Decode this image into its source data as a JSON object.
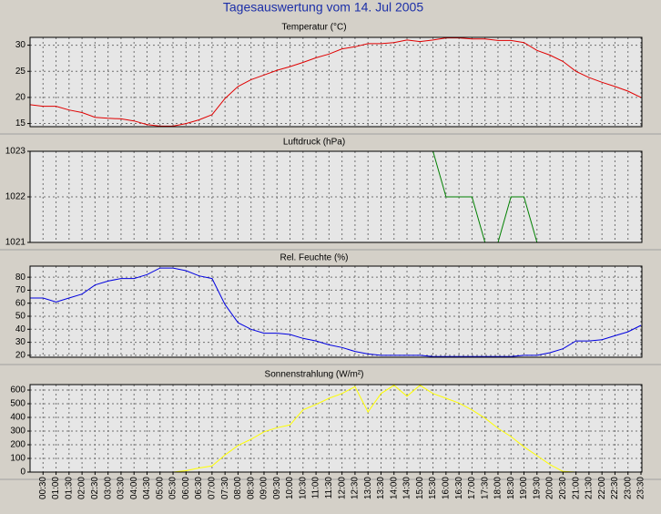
{
  "title": "Tagesauswertung vom 14. Jul 2005",
  "chart_data": [
    {
      "type": "line",
      "title": "Temperatur (°C)",
      "color": "#e00000",
      "grid": true,
      "ylim": [
        14.4,
        31.5
      ],
      "yticks": [
        15,
        20,
        25,
        30
      ],
      "values": [
        18.6,
        18.3,
        18.3,
        17.6,
        17.1,
        16.2,
        16.0,
        15.9,
        15.5,
        14.8,
        14.5,
        14.5,
        15.0,
        15.7,
        16.7,
        19.8,
        22.1,
        23.4,
        24.3,
        25.2,
        25.9,
        26.7,
        27.6,
        28.3,
        29.3,
        29.7,
        30.3,
        30.3,
        30.5,
        31.0,
        30.7,
        31.0,
        31.4,
        31.4,
        31.2,
        31.2,
        30.9,
        30.9,
        30.5,
        29.0,
        28.1,
        26.9,
        25.0,
        23.8,
        22.9,
        22.1,
        21.2,
        20.0
      ]
    },
    {
      "type": "line",
      "title": "Luftdruck (hPa)",
      "color": "#008000",
      "grid": true,
      "ylim": [
        1021,
        1023
      ],
      "yticks": [
        1021,
        1022,
        1023
      ],
      "values": [
        1023,
        1023,
        1023,
        1023,
        1023,
        1023,
        1023,
        1023,
        1023,
        1023,
        1023,
        1023,
        1023,
        1023,
        1023,
        1023,
        1023,
        1023,
        1023,
        1023,
        1023,
        1023,
        1023,
        1023,
        1023,
        1023,
        1023,
        1023,
        1023,
        1023,
        1023,
        1023,
        1022,
        1022,
        1022,
        1021,
        1021,
        1022,
        1022,
        1021,
        1021,
        1021,
        1021,
        1021,
        1021,
        1021,
        1021,
        1021
      ]
    },
    {
      "type": "line",
      "title": "Rel. Feuchte (%)",
      "color": "#0000e0",
      "grid": true,
      "ylim": [
        18.5,
        88.5
      ],
      "yticks": [
        20,
        30,
        40,
        50,
        60,
        70,
        80
      ],
      "values": [
        64,
        64,
        61,
        64,
        67,
        74,
        77,
        79,
        79,
        82,
        87,
        87,
        85,
        81,
        79,
        59,
        45,
        40,
        37,
        37,
        36,
        33,
        31,
        28,
        26,
        23,
        21,
        20,
        20,
        20,
        20,
        19,
        19,
        19,
        19,
        19,
        19,
        19,
        20,
        20,
        22,
        25,
        31,
        31,
        32,
        35,
        38,
        43
      ]
    },
    {
      "type": "line",
      "title": "Sonnenstrahlung (W/m²)",
      "color": "#ffff00",
      "grid": true,
      "ylim": [
        0,
        640
      ],
      "yticks": [
        0,
        100,
        200,
        300,
        400,
        500,
        600
      ],
      "categories": [
        null,
        "00:30",
        "01:00",
        "01:30",
        "02:00",
        "02:30",
        "03:00",
        "03:30",
        "04:00",
        "04:30",
        "05:00",
        "05:30",
        "06:00",
        "06:30",
        "07:00",
        "07:30",
        "08:00",
        "08:30",
        "09:00",
        "09:30",
        "10:00",
        "10:30",
        "11:00",
        "11:30",
        "12:00",
        "12:30",
        "13:00",
        "13:30",
        "14:00",
        "14:30",
        "15:00",
        "15:30",
        "16:00",
        "16:30",
        "17:00",
        "17:30",
        "18:00",
        "18:30",
        "19:00",
        "19:30",
        "20:00",
        "20:30",
        "21:00",
        "21:30",
        "22:00",
        "22:30",
        "23:00",
        "23:30"
      ],
      "values": [
        0,
        0,
        0,
        0,
        0,
        0,
        0,
        0,
        0,
        0,
        0,
        0,
        10,
        30,
        45,
        125,
        195,
        240,
        295,
        325,
        345,
        455,
        495,
        540,
        575,
        625,
        440,
        575,
        635,
        555,
        635,
        575,
        540,
        505,
        455,
        395,
        320,
        260,
        185,
        120,
        55,
        5,
        0,
        0,
        0,
        0,
        0,
        0
      ]
    }
  ]
}
